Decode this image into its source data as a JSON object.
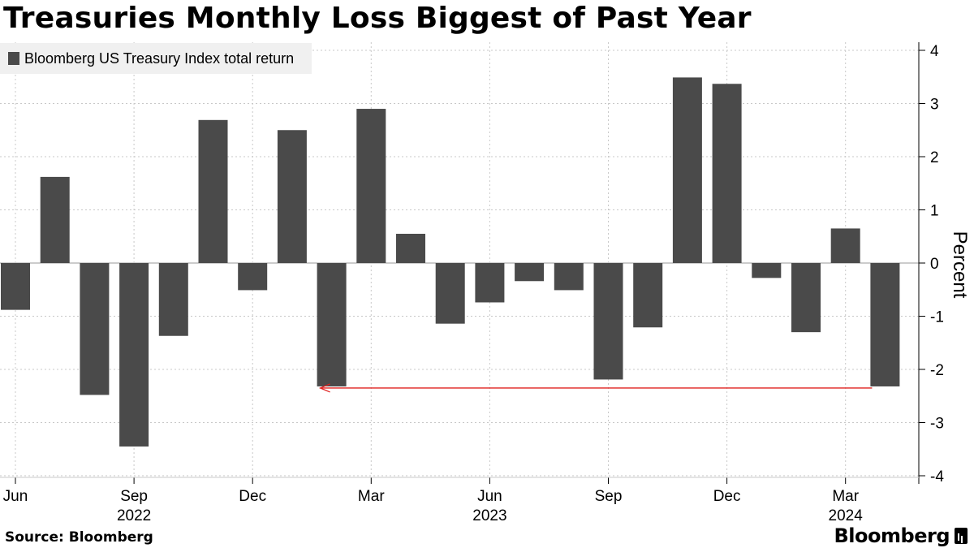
{
  "title": "Treasuries Monthly Loss Biggest of Past Year",
  "source": "Source: Bloomberg",
  "brand": "Bloomberg",
  "colors": {
    "bar": "#4a4a4a",
    "arrow": "#e0211f",
    "grid": "#c8c8c8",
    "legend_bg": "#f0f0f0"
  },
  "chart_data": {
    "type": "bar",
    "series": [
      {
        "name": "Bloomberg US Treasury Index total return",
        "values": [
          -0.88,
          1.62,
          -2.48,
          -3.45,
          -1.37,
          2.69,
          -0.51,
          2.5,
          -2.32,
          2.9,
          0.55,
          -1.14,
          -0.74,
          -0.34,
          -0.51,
          -2.19,
          -1.21,
          3.49,
          3.37,
          -0.28,
          -1.3,
          0.65,
          -2.32
        ]
      }
    ],
    "categories": [
      "Jun 2022",
      "Jul 2022",
      "Aug 2022",
      "Sep 2022",
      "Oct 2022",
      "Nov 2022",
      "Dec 2022",
      "Jan 2023",
      "Feb 2023",
      "Mar 2023",
      "Apr 2023",
      "May 2023",
      "Jun 2023",
      "Jul 2023",
      "Aug 2023",
      "Sep 2023",
      "Oct 2023",
      "Nov 2023",
      "Dec 2023",
      "Jan 2024",
      "Feb 2024",
      "Mar 2024",
      "Apr 2024"
    ],
    "x_ticks": [
      {
        "index": 0,
        "label": "Jun",
        "year": ""
      },
      {
        "index": 3,
        "label": "Sep",
        "year": "2022"
      },
      {
        "index": 6,
        "label": "Dec",
        "year": ""
      },
      {
        "index": 9,
        "label": "Mar",
        "year": ""
      },
      {
        "index": 12,
        "label": "Jun",
        "year": "2023"
      },
      {
        "index": 15,
        "label": "Sep",
        "year": ""
      },
      {
        "index": 18,
        "label": "Dec",
        "year": ""
      },
      {
        "index": 21,
        "label": "Mar",
        "year": "2024"
      }
    ],
    "y_ticks": [
      4,
      3,
      2,
      1,
      0,
      -1,
      -2,
      -3,
      -4
    ],
    "ylim": [
      -4,
      4
    ],
    "ylabel": "Percent",
    "xlabel": "",
    "legend": "top-left",
    "annotation": {
      "type": "arrow",
      "from_index": 22,
      "to_index": 8,
      "value": -2.32
    }
  }
}
